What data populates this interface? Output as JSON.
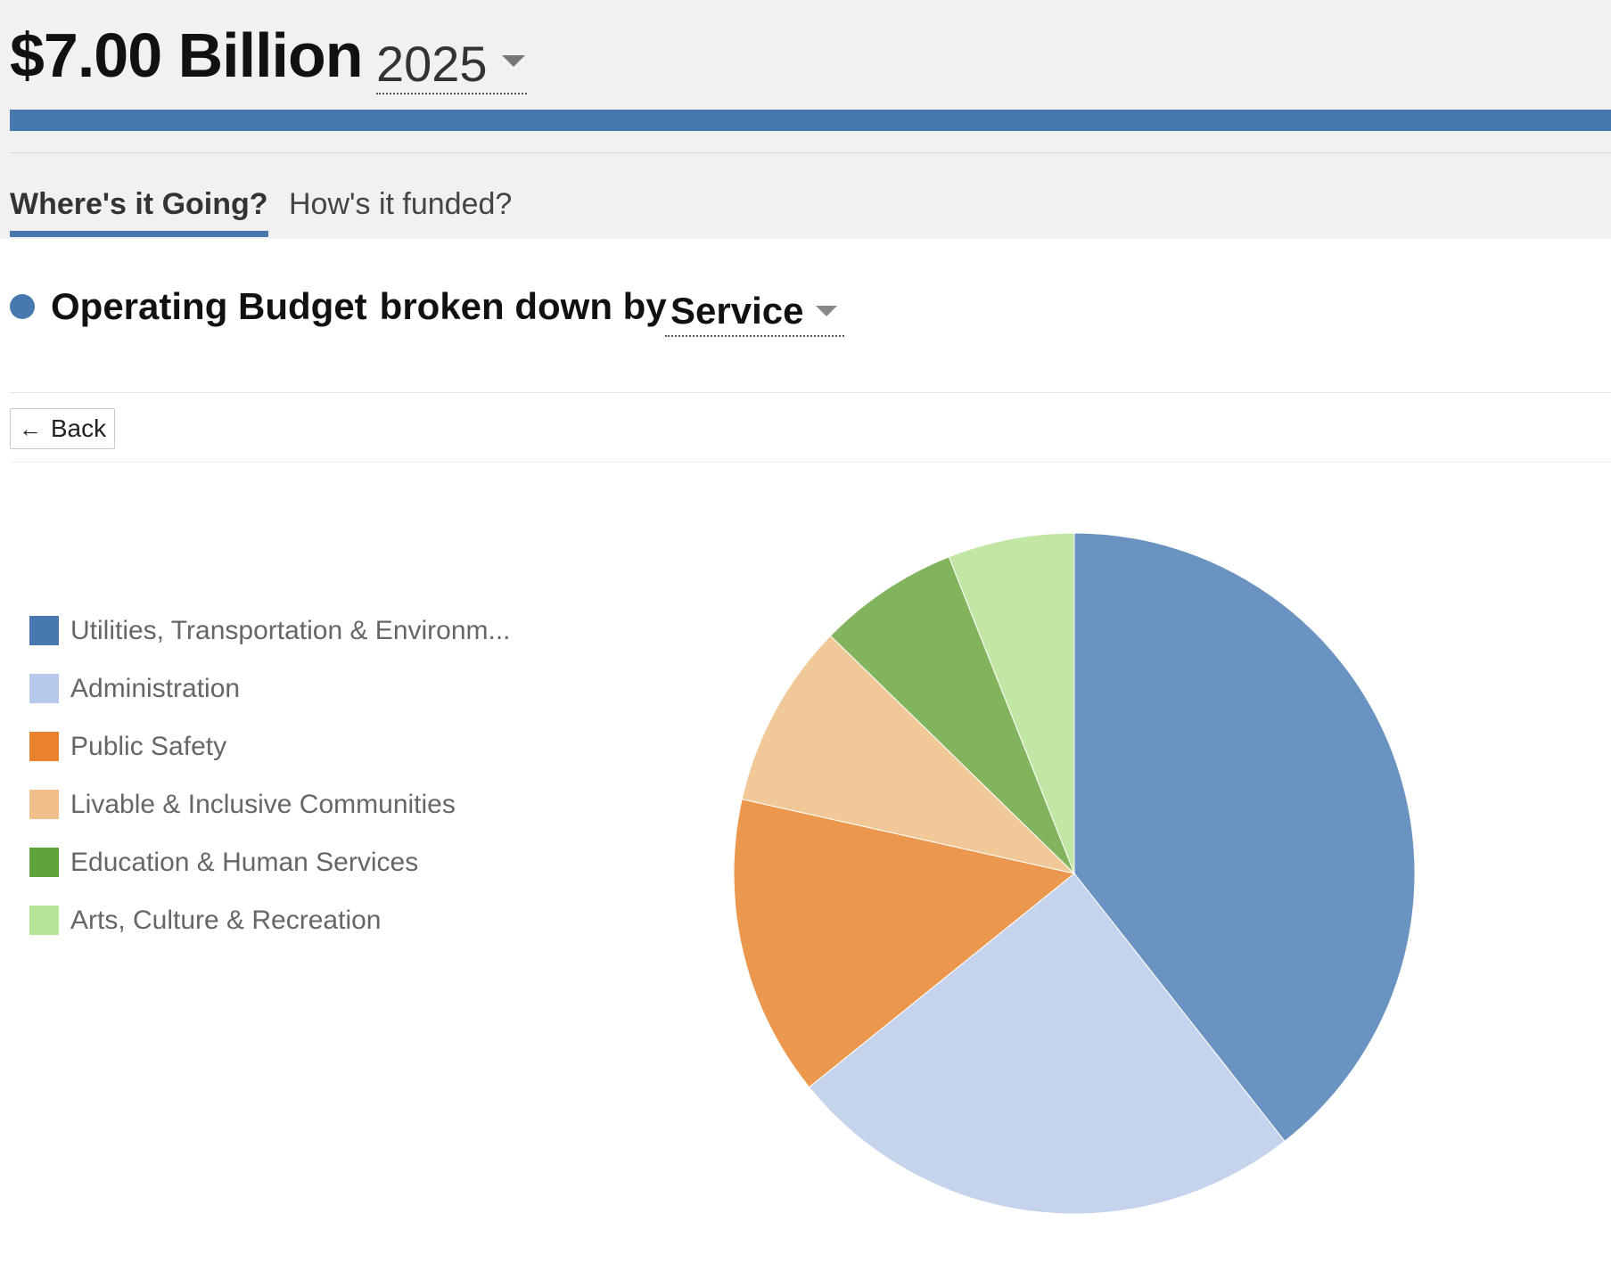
{
  "header": {
    "total": "$7.00 Billion",
    "year": "2025"
  },
  "tabs": [
    {
      "label": "Where's it Going?",
      "active": true
    },
    {
      "label": "How's it funded?",
      "active": false
    }
  ],
  "section": {
    "title_part1": "Operating Budget",
    "title_part2": "broken down by",
    "breakdown": "Service"
  },
  "back_button": {
    "label": "Back"
  },
  "colors": {
    "accent": "#4878b0"
  },
  "chart_data": {
    "type": "pie",
    "categories": [
      "Utilities, Transportation & Environm...",
      "Administration",
      "Public Safety",
      "Livable & Inclusive Communities",
      "Education & Human Services",
      "Arts, Culture & Recreation"
    ],
    "values": [
      39.4,
      24.8,
      14.3,
      8.8,
      6.7,
      6.0
    ],
    "legend_colors": [
      "#4878b0",
      "#b6c9ea",
      "#e8822c",
      "#f2be89",
      "#5ea33a",
      "#b7e598"
    ],
    "slice_colors": [
      "#6a93c1",
      "#c5d3ed",
      "#eb984e",
      "#f1c898",
      "#82b45e",
      "#c2e6a3"
    ],
    "legend": "left"
  }
}
